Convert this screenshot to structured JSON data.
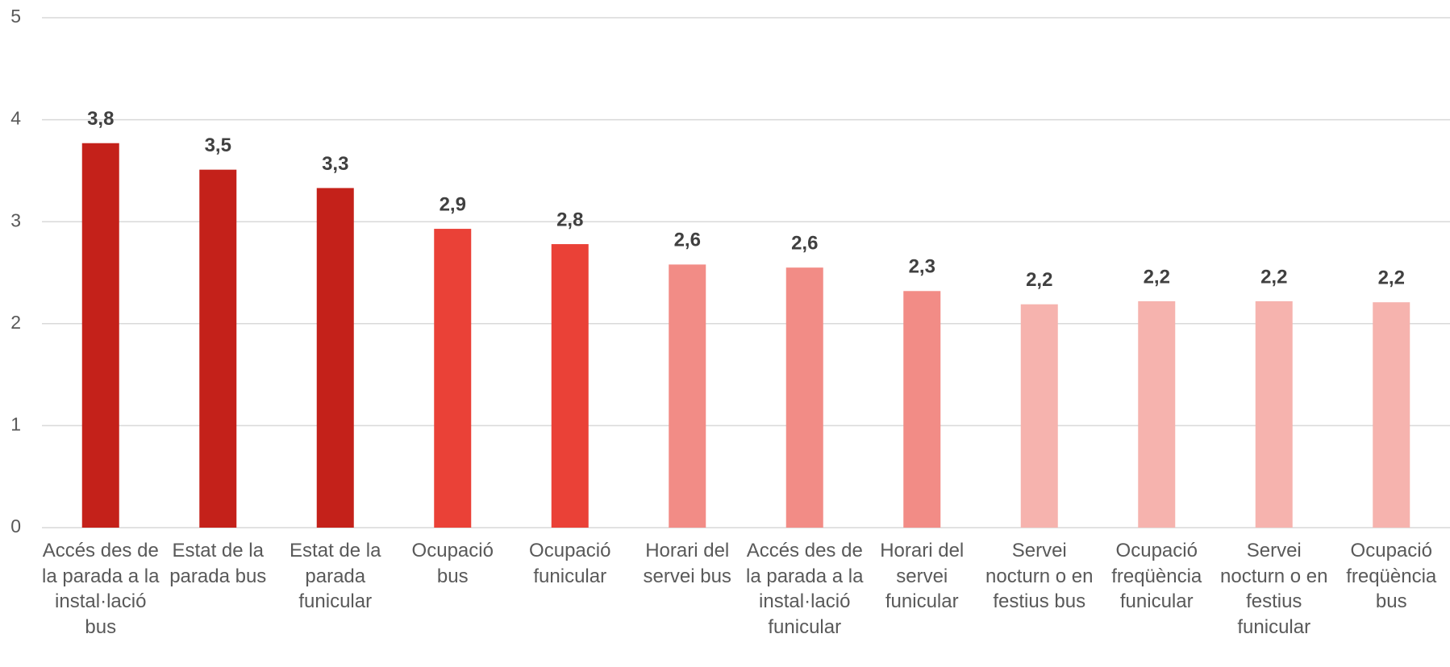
{
  "chart_data": {
    "type": "bar",
    "categories": [
      "Accés des de la parada a la instal·lació bus",
      "Estat de la parada bus",
      "Estat de la parada funicular",
      "Ocupació bus",
      "Ocupació funicular",
      "Horari del servei bus",
      "Accés des de la parada a la instal·lació funicular",
      "Horari del servei funicular",
      "Servei nocturn o en festius bus",
      "Ocupació freqüència funicular",
      "Servei nocturn o en festius funicular",
      "Ocupació freqüència bus"
    ],
    "values": [
      3.77,
      3.51,
      3.33,
      2.93,
      2.78,
      2.58,
      2.55,
      2.32,
      2.19,
      2.22,
      2.22,
      2.21
    ],
    "value_labels": [
      "3,8",
      "3,5",
      "3,3",
      "2,9",
      "2,8",
      "2,6",
      "2,6",
      "2,3",
      "2,2",
      "2,2",
      "2,2",
      "2,2"
    ],
    "colors": [
      "#c4211a",
      "#c4211a",
      "#c4211a",
      "#ea4137",
      "#ea4137",
      "#f28c86",
      "#f28c86",
      "#f28c86",
      "#f6b3ae",
      "#f6b3ae",
      "#f6b3ae",
      "#f6b3ae"
    ],
    "ylim": [
      0,
      5
    ],
    "yticks": [
      0,
      1,
      2,
      3,
      4,
      5
    ],
    "grid": true
  }
}
